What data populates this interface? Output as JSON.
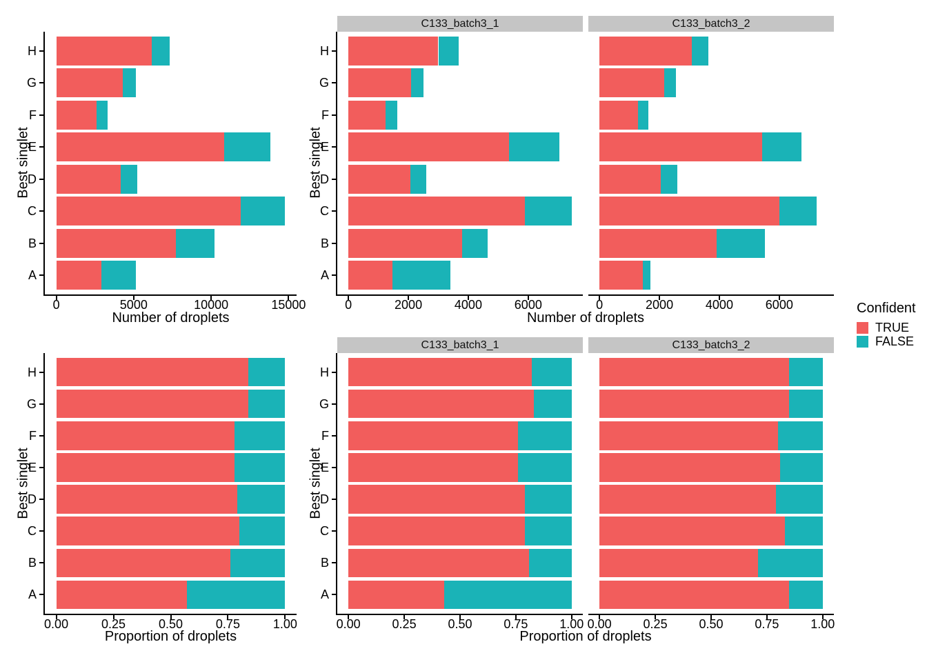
{
  "figure": {
    "background": "#ffffff"
  },
  "colors": {
    "true": "#F25D5C",
    "false": "#1AB3B7",
    "strip_bg": "#C5C5C5",
    "axis_line": "#000000",
    "text": "#000000"
  },
  "axis_labels": {
    "category_axis": "Best singlet",
    "counts_axis": "Number of droplets",
    "proportion_axis": "Proportion of droplets"
  },
  "legend": {
    "title": "Confident",
    "entries": [
      {
        "label": "TRUE",
        "color": "#F25D5C"
      },
      {
        "label": "FALSE",
        "color": "#1AB3B7"
      }
    ]
  },
  "chart_data": [
    {
      "id": "counts-combined",
      "type": "bar",
      "orientation": "horizontal",
      "stacked": true,
      "facet_label": null,
      "xlabel": "Number of droplets",
      "ylabel": "Best singlet",
      "categories": [
        "H",
        "G",
        "F",
        "E",
        "D",
        "C",
        "B",
        "A"
      ],
      "series": [
        {
          "name": "TRUE",
          "color": "#F25D5C",
          "values": [
            6170,
            4300,
            2580,
            10840,
            4150,
            11900,
            7740,
            2920
          ]
        },
        {
          "name": "FALSE",
          "color": "#1AB3B7",
          "values": [
            1150,
            820,
            720,
            2990,
            1075,
            2880,
            2470,
            2200
          ]
        }
      ],
      "xticks": {
        "values": [
          0,
          5000,
          10000,
          15000
        ],
        "labels": [
          "0",
          "5000",
          "10000",
          "15000"
        ]
      }
    },
    {
      "id": "counts-batch1",
      "type": "bar",
      "orientation": "horizontal",
      "stacked": true,
      "facet_label": "C133_batch3_1",
      "xlabel": "Number of droplets",
      "ylabel": "Best singlet",
      "categories": [
        "H",
        "G",
        "F",
        "E",
        "D",
        "C",
        "B",
        "A"
      ],
      "series": [
        {
          "name": "TRUE",
          "color": "#F25D5C",
          "values": [
            3000,
            2090,
            1240,
            5350,
            2070,
            5880,
            3790,
            1460
          ]
        },
        {
          "name": "FALSE",
          "color": "#1AB3B7",
          "values": [
            680,
            415,
            390,
            1680,
            535,
            1570,
            860,
            1950
          ]
        }
      ],
      "xticks": {
        "values": [
          0,
          2000,
          4000,
          6000
        ],
        "labels": [
          "0",
          "2000",
          "4000",
          "6000"
        ]
      }
    },
    {
      "id": "counts-batch2",
      "type": "bar",
      "orientation": "horizontal",
      "stacked": true,
      "facet_label": "C133_batch3_2",
      "xlabel": "Number of droplets",
      "ylabel": "Best singlet",
      "categories": [
        "H",
        "G",
        "F",
        "E",
        "D",
        "C",
        "B",
        "A"
      ],
      "series": [
        {
          "name": "TRUE",
          "color": "#F25D5C",
          "values": [
            3090,
            2170,
            1290,
            5430,
            2050,
            6010,
            3920,
            1440
          ]
        },
        {
          "name": "FALSE",
          "color": "#1AB3B7",
          "values": [
            550,
            375,
            330,
            1310,
            540,
            1230,
            1590,
            265
          ]
        }
      ],
      "xticks": {
        "values": [
          0,
          2000,
          4000,
          6000
        ],
        "labels": [
          "0",
          "2000",
          "4000",
          "6000"
        ]
      }
    },
    {
      "id": "prop-combined",
      "type": "bar",
      "orientation": "horizontal",
      "stacked": true,
      "facet_label": null,
      "xlabel": "Proportion of droplets",
      "ylabel": "Best singlet",
      "categories": [
        "H",
        "G",
        "F",
        "E",
        "D",
        "C",
        "B",
        "A"
      ],
      "series": [
        {
          "name": "TRUE",
          "color": "#F25D5C",
          "values": [
            0.84,
            0.84,
            0.78,
            0.78,
            0.79,
            0.8,
            0.76,
            0.57
          ]
        },
        {
          "name": "FALSE",
          "color": "#1AB3B7",
          "values": [
            0.16,
            0.16,
            0.22,
            0.22,
            0.21,
            0.2,
            0.24,
            0.43
          ]
        }
      ],
      "xticks": {
        "values": [
          0,
          0.25,
          0.5,
          0.75,
          1
        ],
        "labels": [
          "0.00",
          "0.25",
          "0.50",
          "0.75",
          "1.00"
        ]
      }
    },
    {
      "id": "prop-batch1",
      "type": "bar",
      "orientation": "horizontal",
      "stacked": true,
      "facet_label": "C133_batch3_1",
      "xlabel": "Proportion of droplets",
      "ylabel": "Best singlet",
      "categories": [
        "H",
        "G",
        "F",
        "E",
        "D",
        "C",
        "B",
        "A"
      ],
      "series": [
        {
          "name": "TRUE",
          "color": "#F25D5C",
          "values": [
            0.82,
            0.83,
            0.76,
            0.76,
            0.79,
            0.79,
            0.81,
            0.43
          ]
        },
        {
          "name": "FALSE",
          "color": "#1AB3B7",
          "values": [
            0.18,
            0.17,
            0.24,
            0.24,
            0.21,
            0.21,
            0.19,
            0.57
          ]
        }
      ],
      "xticks": {
        "values": [
          0,
          0.25,
          0.5,
          0.75,
          1
        ],
        "labels": [
          "0.00",
          "0.25",
          "0.50",
          "0.75",
          "1.00"
        ]
      }
    },
    {
      "id": "prop-batch2",
      "type": "bar",
      "orientation": "horizontal",
      "stacked": true,
      "facet_label": "C133_batch3_2",
      "xlabel": "Proportion of droplets",
      "ylabel": "Best singlet",
      "categories": [
        "H",
        "G",
        "F",
        "E",
        "D",
        "C",
        "B",
        "A"
      ],
      "series": [
        {
          "name": "TRUE",
          "color": "#F25D5C",
          "values": [
            0.85,
            0.85,
            0.8,
            0.81,
            0.79,
            0.83,
            0.71,
            0.85
          ]
        },
        {
          "name": "FALSE",
          "color": "#1AB3B7",
          "values": [
            0.15,
            0.15,
            0.2,
            0.19,
            0.21,
            0.17,
            0.29,
            0.15
          ]
        }
      ],
      "xticks": {
        "values": [
          0,
          0.25,
          0.5,
          0.75,
          1
        ],
        "labels": [
          "0.00",
          "0.25",
          "0.50",
          "0.75",
          "1.00"
        ]
      }
    }
  ]
}
